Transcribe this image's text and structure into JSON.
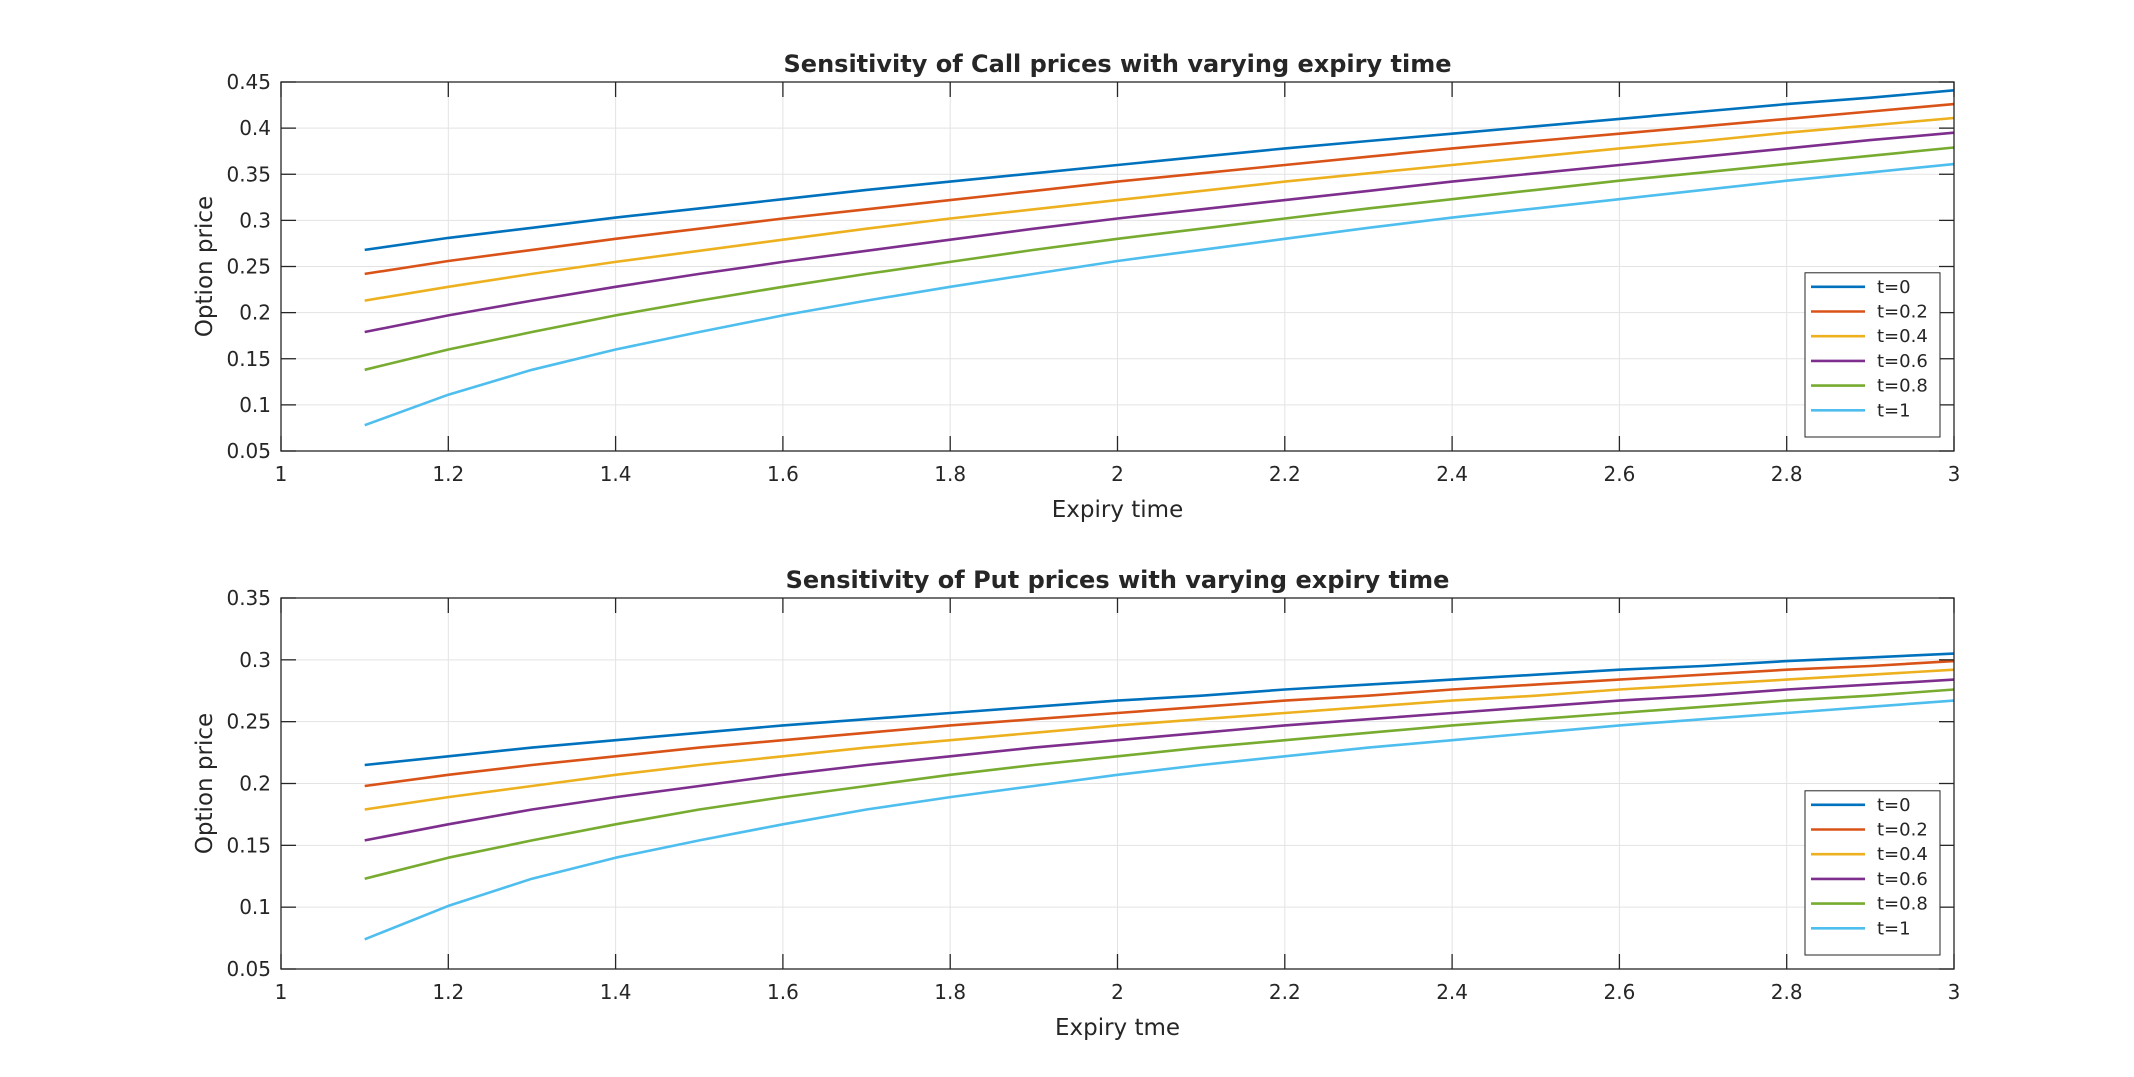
{
  "chart_data": [
    {
      "type": "line",
      "title": "Sensitivity of Call prices with varying expiry time",
      "xlabel": "Expiry time",
      "ylabel": "Option price",
      "xlim": [
        1,
        3
      ],
      "ylim": [
        0.05,
        0.45
      ],
      "x_ticks": [
        "1",
        "1.2",
        "1.4",
        "1.6",
        "1.8",
        "2",
        "2.2",
        "2.4",
        "2.6",
        "2.8",
        "3"
      ],
      "y_ticks": [
        "0.05",
        "0.1",
        "0.15",
        "0.2",
        "0.25",
        "0.3",
        "0.35",
        "0.4",
        "0.45"
      ],
      "grid": true,
      "legend_position": "bottom-right",
      "x": [
        1.1,
        1.2,
        1.3,
        1.4,
        1.5,
        1.6,
        1.7,
        1.8,
        1.9,
        2.0,
        2.1,
        2.2,
        2.3,
        2.4,
        2.5,
        2.6,
        2.7,
        2.8,
        2.9,
        3.0
      ],
      "series": [
        {
          "name": "t=0",
          "color": "#0072BD",
          "values": [
            0.268,
            0.281,
            0.292,
            0.303,
            0.313,
            0.323,
            0.333,
            0.342,
            0.351,
            0.36,
            0.369,
            0.378,
            0.386,
            0.394,
            0.402,
            0.41,
            0.418,
            0.426,
            0.433,
            0.441
          ]
        },
        {
          "name": "t=0.2",
          "color": "#D95319",
          "values": [
            0.242,
            0.256,
            0.268,
            0.28,
            0.291,
            0.302,
            0.312,
            0.322,
            0.332,
            0.342,
            0.351,
            0.36,
            0.369,
            0.378,
            0.386,
            0.394,
            0.402,
            0.41,
            0.418,
            0.426
          ]
        },
        {
          "name": "t=0.4",
          "color": "#EDB120",
          "values": [
            0.213,
            0.228,
            0.242,
            0.255,
            0.267,
            0.279,
            0.291,
            0.302,
            0.312,
            0.322,
            0.332,
            0.342,
            0.351,
            0.36,
            0.369,
            0.378,
            0.386,
            0.395,
            0.403,
            0.411
          ]
        },
        {
          "name": "t=0.6",
          "color": "#7E2F8E",
          "values": [
            0.179,
            0.197,
            0.213,
            0.228,
            0.242,
            0.255,
            0.267,
            0.279,
            0.291,
            0.302,
            0.312,
            0.322,
            0.332,
            0.342,
            0.351,
            0.36,
            0.369,
            0.378,
            0.387,
            0.395
          ]
        },
        {
          "name": "t=0.8",
          "color": "#77AC30",
          "values": [
            0.138,
            0.16,
            0.179,
            0.197,
            0.213,
            0.228,
            0.242,
            0.255,
            0.268,
            0.28,
            0.291,
            0.302,
            0.313,
            0.323,
            0.333,
            0.343,
            0.352,
            0.361,
            0.37,
            0.379
          ]
        },
        {
          "name": "t=1",
          "color": "#4DBEEE",
          "values": [
            0.078,
            0.111,
            0.138,
            0.16,
            0.179,
            0.197,
            0.213,
            0.228,
            0.242,
            0.256,
            0.268,
            0.28,
            0.292,
            0.303,
            0.313,
            0.323,
            0.333,
            0.343,
            0.352,
            0.361
          ]
        }
      ]
    },
    {
      "type": "line",
      "title": "Sensitivity of Put prices with varying expiry time",
      "xlabel": "Expiry tme",
      "ylabel": "Option price",
      "xlim": [
        1,
        3
      ],
      "ylim": [
        0.05,
        0.35
      ],
      "x_ticks": [
        "1",
        "1.2",
        "1.4",
        "1.6",
        "1.8",
        "2",
        "2.2",
        "2.4",
        "2.6",
        "2.8",
        "3"
      ],
      "y_ticks": [
        "0.05",
        "0.1",
        "0.15",
        "0.2",
        "0.25",
        "0.3",
        "0.35"
      ],
      "grid": true,
      "legend_position": "bottom-right",
      "x": [
        1.1,
        1.2,
        1.3,
        1.4,
        1.5,
        1.6,
        1.7,
        1.8,
        1.9,
        2.0,
        2.1,
        2.2,
        2.3,
        2.4,
        2.5,
        2.6,
        2.7,
        2.8,
        2.9,
        3.0
      ],
      "series": [
        {
          "name": "t=0",
          "color": "#0072BD",
          "values": [
            0.215,
            0.222,
            0.229,
            0.235,
            0.241,
            0.247,
            0.252,
            0.257,
            0.262,
            0.267,
            0.271,
            0.276,
            0.28,
            0.284,
            0.288,
            0.292,
            0.295,
            0.299,
            0.302,
            0.305
          ]
        },
        {
          "name": "t=0.2",
          "color": "#D95319",
          "values": [
            0.198,
            0.207,
            0.215,
            0.222,
            0.229,
            0.235,
            0.241,
            0.247,
            0.252,
            0.257,
            0.262,
            0.267,
            0.271,
            0.276,
            0.28,
            0.284,
            0.288,
            0.292,
            0.295,
            0.299
          ]
        },
        {
          "name": "t=0.4",
          "color": "#EDB120",
          "values": [
            0.179,
            0.189,
            0.198,
            0.207,
            0.215,
            0.222,
            0.229,
            0.235,
            0.241,
            0.247,
            0.252,
            0.257,
            0.262,
            0.267,
            0.271,
            0.276,
            0.28,
            0.284,
            0.288,
            0.292
          ]
        },
        {
          "name": "t=0.6",
          "color": "#7E2F8E",
          "values": [
            0.154,
            0.167,
            0.179,
            0.189,
            0.198,
            0.207,
            0.215,
            0.222,
            0.229,
            0.235,
            0.241,
            0.247,
            0.252,
            0.257,
            0.262,
            0.267,
            0.271,
            0.276,
            0.28,
            0.284
          ]
        },
        {
          "name": "t=0.8",
          "color": "#77AC30",
          "values": [
            0.123,
            0.14,
            0.154,
            0.167,
            0.179,
            0.189,
            0.198,
            0.207,
            0.215,
            0.222,
            0.229,
            0.235,
            0.241,
            0.247,
            0.252,
            0.257,
            0.262,
            0.267,
            0.271,
            0.276
          ]
        },
        {
          "name": "t=1",
          "color": "#4DBEEE",
          "values": [
            0.074,
            0.101,
            0.123,
            0.14,
            0.154,
            0.167,
            0.179,
            0.189,
            0.198,
            0.207,
            0.215,
            0.222,
            0.229,
            0.235,
            0.241,
            0.247,
            0.252,
            0.257,
            0.262,
            0.267
          ]
        }
      ]
    }
  ]
}
